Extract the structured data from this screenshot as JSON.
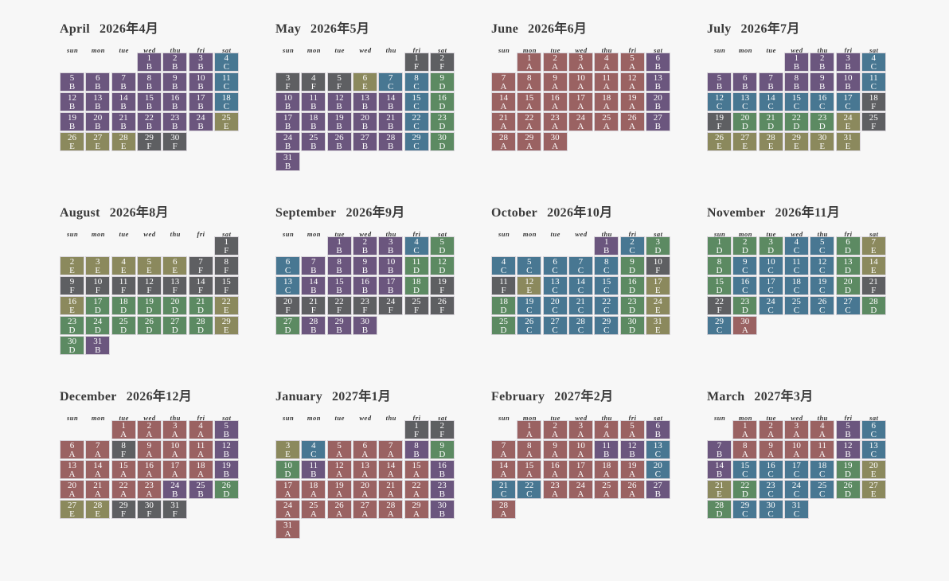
{
  "weekdays": [
    "sun",
    "mon",
    "tue",
    "wed",
    "thu",
    "fri",
    "sat"
  ],
  "colors": {
    "A": "#9a6262",
    "B": "#6b567e",
    "C": "#487792",
    "D": "#5c8a62",
    "E": "#8b895d",
    "F": "#5e5f62"
  },
  "months": [
    {
      "name": "April",
      "label": "2026年4月",
      "codes": "BBBCBBBBBBCBBBBBBCBBBBBBEEEEFF"
    },
    {
      "name": "May",
      "label": "2026年5月",
      "codes": "FFFFFECCDBBBBBCDBBBBBCDBBBBBCDB"
    },
    {
      "name": "June",
      "label": "2026年6月",
      "codes": "AAAAABAAAAAABAAAAAABAAAAAABAAA"
    },
    {
      "name": "July",
      "label": "2026年7月",
      "codes": "BBBCBBBBBBCCCCCCCFFDDDDEFEEEEEE"
    },
    {
      "name": "August",
      "label": "2026年8月",
      "codes": "FEEEEEFFFFFFFFFEDDDDDEDDDDDDEDB"
    },
    {
      "name": "September",
      "label": "2026年9月",
      "codes": "BBBCDCBBBBDDCBBBBDFFFFFFFFDBBB"
    },
    {
      "name": "October",
      "label": "2026年10月",
      "codes": "BCDCCCCCDFFECCCDEDCCCCDEDCCCCDE"
    },
    {
      "name": "November",
      "label": "2026年11月",
      "codes": "DDDCCDEDCCCCDEDCCCCDFFDCCCCDCA"
    },
    {
      "name": "December",
      "label": "2026年12月",
      "codes": "AAAABAAFAAABAAAAAABAAAABBDEEFFF"
    },
    {
      "name": "January",
      "label": "2027年1月",
      "codes": "FFECAAABDDBAAAABAAAAAABAAAAAABA"
    },
    {
      "name": "February",
      "label": "2027年2月",
      "codes": "AAAAABAAAABBCAAAAAACCCAAAABA"
    },
    {
      "name": "March",
      "label": "2027年3月",
      "codes": "AAAABCBAAAABCBCCCCDEEDCCCDEDCCC"
    }
  ]
}
